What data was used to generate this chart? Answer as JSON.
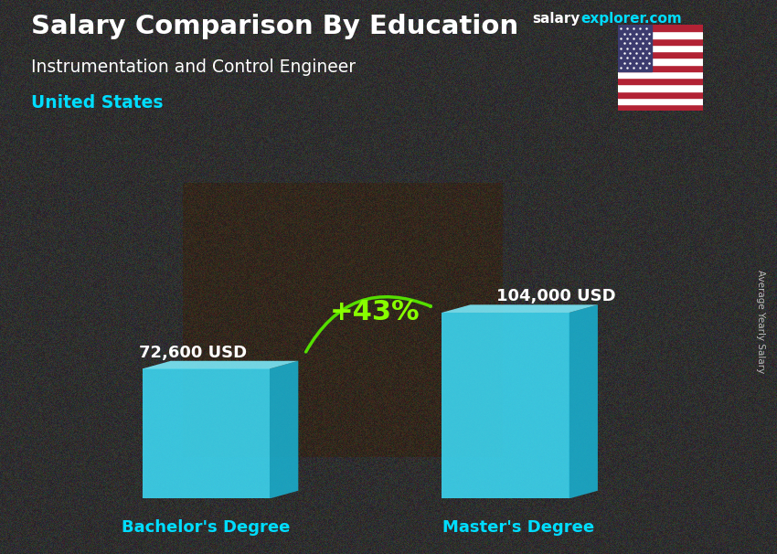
{
  "title_main": "Salary Comparison By Education",
  "subtitle": "Instrumentation and Control Engineer",
  "location": "United States",
  "brand_salary": "salary",
  "brand_explorer": "explorer.com",
  "ylabel": "Average Yearly Salary",
  "categories": [
    "Bachelor's Degree",
    "Master's Degree"
  ],
  "values": [
    72600,
    104000
  ],
  "value_labels": [
    "72,600 USD",
    "104,000 USD"
  ],
  "bar_color_front": "#3dd9f5",
  "bar_color_side": "#1ab0d0",
  "bar_color_top": "#7eeeff",
  "pct_change": "+43%",
  "pct_color": "#88ff00",
  "arrow_color": "#55dd00",
  "bg_color": "#2a2a2a",
  "title_color": "#ffffff",
  "subtitle_color": "#ffffff",
  "location_color": "#00ddff",
  "value_color": "#ffffff",
  "cat_color": "#00ddff",
  "brand_color1": "#ffffff",
  "brand_color2": "#00ddff",
  "rotlabel_color": "#bbbbbb",
  "figsize": [
    8.5,
    6.06
  ],
  "dpi": 100
}
